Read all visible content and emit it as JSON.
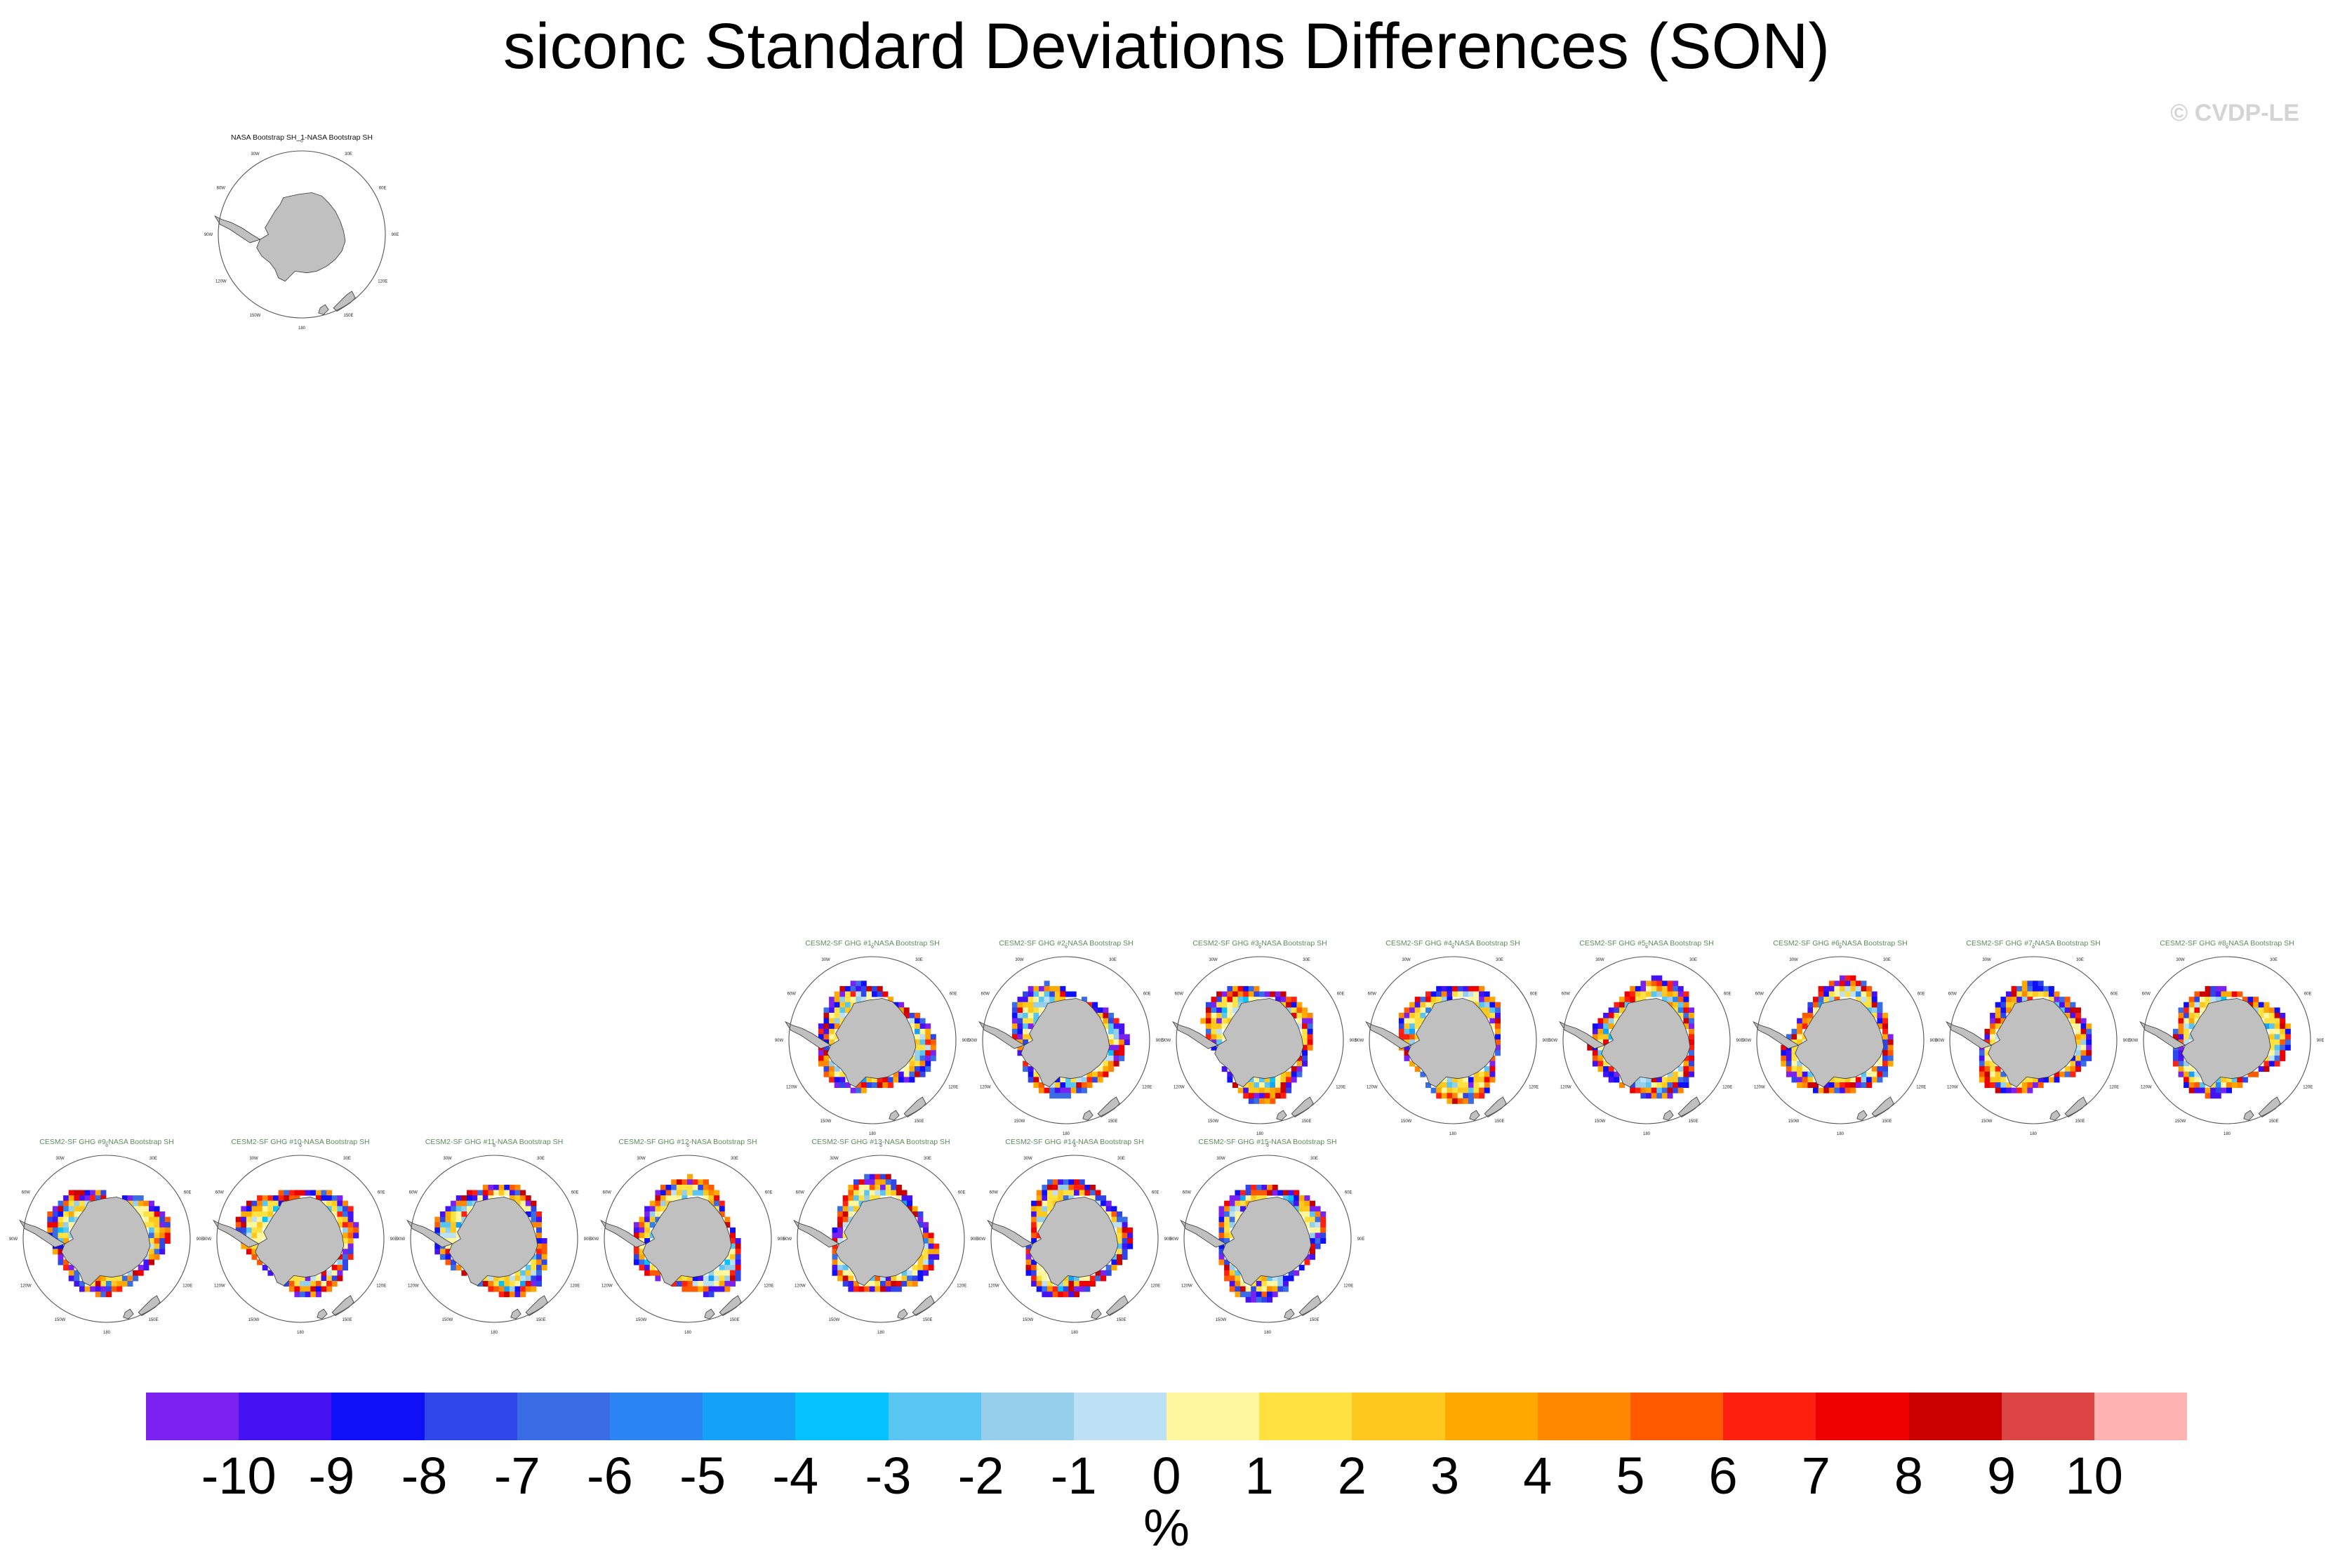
{
  "title": "siconc Standard Deviations Differences (SON)",
  "credit": "© CVDP-LE",
  "lon_labels": [
    "0",
    "30E",
    "60E",
    "90E",
    "120E",
    "150E",
    "180",
    "150W",
    "120W",
    "90W",
    "60W",
    "30W"
  ],
  "colors": {
    "land": "#c0c0c0",
    "panel_title_obs": "#111111",
    "panel_title_model": "#5e8a5e"
  },
  "panels": [
    {
      "title": "NASA Bootstrap SH_1-NASA Bootstrap SH",
      "kind": "obs"
    },
    {
      "title": "CESM2-SF GHG #1-NASA Bootstrap SH",
      "kind": "model"
    },
    {
      "title": "CESM2-SF GHG #2-NASA Bootstrap SH",
      "kind": "model"
    },
    {
      "title": "CESM2-SF GHG #3-NASA Bootstrap SH",
      "kind": "model"
    },
    {
      "title": "CESM2-SF GHG #4-NASA Bootstrap SH",
      "kind": "model"
    },
    {
      "title": "CESM2-SF GHG #5-NASA Bootstrap SH",
      "kind": "model"
    },
    {
      "title": "CESM2-SF GHG #6-NASA Bootstrap SH",
      "kind": "model"
    },
    {
      "title": "CESM2-SF GHG #7-NASA Bootstrap SH",
      "kind": "model"
    },
    {
      "title": "CESM2-SF GHG #8-NASA Bootstrap SH",
      "kind": "model"
    },
    {
      "title": "CESM2-SF GHG #9-NASA Bootstrap SH",
      "kind": "model"
    },
    {
      "title": "CESM2-SF GHG #10-NASA Bootstrap SH",
      "kind": "model"
    },
    {
      "title": "CESM2-SF GHG #11-NASA Bootstrap SH",
      "kind": "model"
    },
    {
      "title": "CESM2-SF GHG #12-NASA Bootstrap SH",
      "kind": "model"
    },
    {
      "title": "CESM2-SF GHG #13-NASA Bootstrap SH",
      "kind": "model"
    },
    {
      "title": "CESM2-SF GHG #14-NASA Bootstrap SH",
      "kind": "model"
    },
    {
      "title": "CESM2-SF GHG #15-NASA Bootstrap SH",
      "kind": "model"
    }
  ],
  "chart_data": {
    "type": "heatmap",
    "title": "siconc Standard Deviations Differences (SON)",
    "units": "%",
    "projection": "south polar stereographic",
    "colorbar": {
      "ticks": [
        "-10",
        "-9",
        "-8",
        "-7",
        "-6",
        "-5",
        "-4",
        "-3",
        "-2",
        "-1",
        "0",
        "1",
        "2",
        "3",
        "4",
        "5",
        "6",
        "7",
        "8",
        "9",
        "10"
      ],
      "colors": [
        "#7b22f0",
        "#4412f3",
        "#1010f8",
        "#2f47e8",
        "#3a6ce6",
        "#2b85f3",
        "#14a2f9",
        "#05c1fc",
        "#58c5f2",
        "#96cfec",
        "#bde0f5",
        "#fff7a0",
        "#ffe141",
        "#ffc81e",
        "#ffa800",
        "#ff8800",
        "#ff5a00",
        "#ff2010",
        "#ee0000",
        "#c80000",
        "#dd4444",
        "#ffb2b2"
      ]
    }
  }
}
